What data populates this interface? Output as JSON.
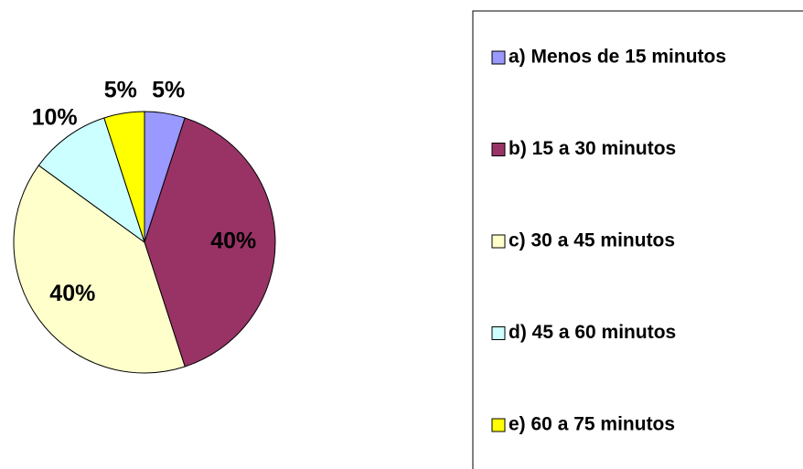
{
  "chart_data": {
    "type": "pie",
    "categories": [
      "a) Menos de 15 minutos",
      "b) 15 a 30 minutos",
      "c) 30 a 45 minutos",
      "d) 45 a 60 minutos",
      "e) 60 a 75 minutos"
    ],
    "values": [
      5,
      40,
      40,
      10,
      5
    ],
    "value_labels": [
      "5%",
      "40%",
      "40%",
      "10%",
      "5%"
    ],
    "colors": [
      "#9999ff",
      "#993366",
      "#ffffcc",
      "#ccffff",
      "#ffff00"
    ],
    "legend": "right"
  }
}
